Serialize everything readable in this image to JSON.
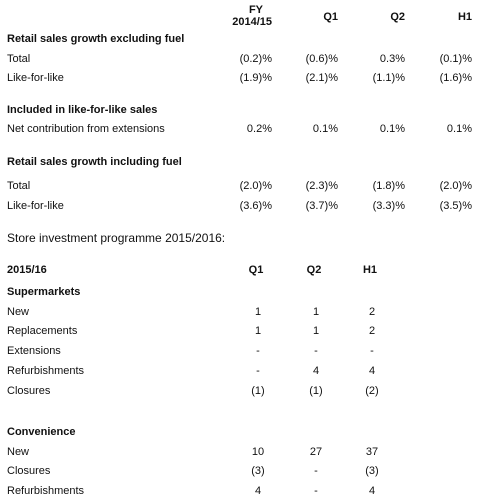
{
  "table1": {
    "headers": [
      [
        "FY",
        "2014/15"
      ],
      [
        "Q1"
      ],
      [
        "Q2"
      ],
      [
        "H1"
      ]
    ],
    "sections": [
      {
        "title": "Retail sales growth excluding fuel",
        "rows": [
          {
            "label": "Total",
            "values": [
              "(0.2)%",
              "(0.6)%",
              "0.3%",
              "(0.1)%"
            ]
          },
          {
            "label": "Like-for-like",
            "values": [
              "(1.9)%",
              "(2.1)%",
              "(1.1)%",
              "(1.6)%"
            ]
          }
        ]
      },
      {
        "title": "Included in like-for-like sales",
        "rows": [
          {
            "label": "Net contribution from extensions",
            "values": [
              "0.2%",
              "0.1%",
              "0.1%",
              "0.1%"
            ]
          }
        ]
      },
      {
        "title": "Retail sales growth including fuel",
        "rows": [
          {
            "label": "Total",
            "values": [
              "(2.0)%",
              "(2.3)%",
              "(1.8)%",
              "(2.0)%"
            ]
          },
          {
            "label": "Like-for-like",
            "values": [
              "(3.6)%",
              "(3.7)%",
              "(3.3)%",
              "(3.5)%"
            ]
          }
        ]
      }
    ]
  },
  "caption": "Store investment programme 2015/2016:",
  "table2": {
    "title": "2015/16",
    "headers": [
      "Q1",
      "Q2",
      "H1"
    ],
    "sections": [
      {
        "title": "Supermarkets",
        "rows": [
          {
            "label": "New",
            "values": [
              "1",
              "1",
              "2"
            ]
          },
          {
            "label": "Replacements",
            "values": [
              "1",
              "1",
              "2"
            ]
          },
          {
            "label": "Extensions",
            "values": [
              "-",
              "-",
              "-"
            ]
          },
          {
            "label": "Refurbishments",
            "values": [
              "-",
              "4",
              "4"
            ]
          },
          {
            "label": "Closures",
            "values": [
              "(1)",
              "(1)",
              "(2)"
            ]
          }
        ]
      },
      {
        "title": "Convenience",
        "rows": [
          {
            "label": "New",
            "values": [
              "10",
              "27",
              "37"
            ]
          },
          {
            "label": "Closures",
            "values": [
              "(3)",
              "-",
              "(3)"
            ]
          },
          {
            "label": "Refurbishments",
            "values": [
              "4",
              "-",
              "4"
            ]
          }
        ]
      }
    ]
  }
}
